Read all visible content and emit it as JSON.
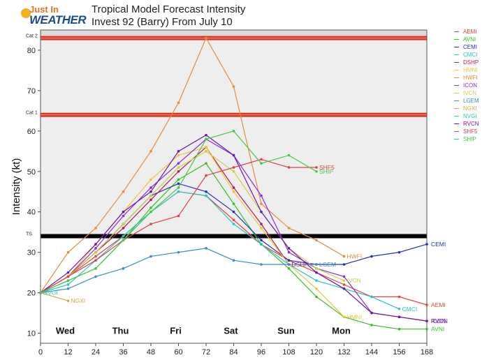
{
  "logo": {
    "line1": "Just In",
    "line2": "WEATHER"
  },
  "title": {
    "line1": "Tropical Model Forecast Intensity",
    "line2": "Invest 92 (Barry) From July 10"
  },
  "chart_data": {
    "type": "line",
    "title": "Tropical Model Forecast Intensity Invest 92 (Barry) From July 10",
    "ylabel": "Intensity (kt)",
    "xlabel": "",
    "xlim": [
      0,
      168
    ],
    "ylim": [
      7.5,
      85
    ],
    "x_ticks": [
      0,
      12,
      24,
      36,
      48,
      60,
      72,
      84,
      96,
      108,
      120,
      132,
      144,
      156,
      168
    ],
    "y_ticks": [
      10,
      20,
      30,
      40,
      50,
      60,
      70,
      80
    ],
    "day_labels": [
      {
        "label": "Wed",
        "x": 12
      },
      {
        "label": "Thu",
        "x": 36
      },
      {
        "label": "Fri",
        "x": 60
      },
      {
        "label": "Sat",
        "x": 84
      },
      {
        "label": "Sun",
        "x": 108
      },
      {
        "label": "Mon",
        "x": 132
      }
    ],
    "thresholds": [
      {
        "label": "Cat 2",
        "value": 83,
        "color": "#e0321e"
      },
      {
        "label": "Cat 1",
        "value": 64,
        "color": "#e0321e"
      },
      {
        "label": "TS",
        "value": 34,
        "color": "#000000"
      }
    ],
    "series": [
      {
        "name": "AEMI",
        "color": "#e8433a",
        "x": [
          0,
          12,
          24,
          36,
          48,
          60,
          72,
          84,
          96,
          108,
          120,
          132,
          144,
          156,
          168
        ],
        "y": [
          20,
          24,
          29,
          34,
          40,
          45,
          44,
          38,
          32,
          28,
          25,
          22,
          19,
          19,
          17
        ],
        "end_label": "AEMI"
      },
      {
        "name": "AVNI",
        "color": "#35c12b",
        "x": [
          0,
          12,
          24,
          36,
          48,
          60,
          72,
          84,
          96,
          108,
          120,
          132,
          144,
          156,
          168
        ],
        "y": [
          20,
          23,
          26,
          33,
          41,
          48,
          52,
          42,
          32,
          26,
          19,
          14,
          12,
          11,
          11
        ],
        "end_label": "AVNI"
      },
      {
        "name": "CEMI",
        "color": "#2433b5",
        "x": [
          0,
          12,
          24,
          36,
          48,
          60,
          72,
          84,
          96,
          108,
          120,
          132,
          144,
          156,
          168
        ],
        "y": [
          20,
          24,
          30,
          37,
          44,
          47,
          45,
          40,
          33,
          28,
          27,
          27,
          29,
          30,
          32
        ],
        "end_label": "CEMI"
      },
      {
        "name": "CMCI",
        "color": "#27c4c9",
        "x": [
          0,
          12,
          24,
          36,
          48,
          60,
          72,
          84,
          96,
          108,
          120,
          132,
          144,
          156
        ],
        "y": [
          20,
          22,
          28,
          34,
          40,
          45,
          44,
          37,
          32,
          27,
          23,
          21,
          19,
          16
        ],
        "end_label": "CMCI"
      },
      {
        "name": "DSHP",
        "color": "#b2185a",
        "x": [
          0,
          12,
          24,
          36,
          48,
          60,
          72,
          84,
          96,
          108
        ],
        "y": [
          20,
          24,
          30,
          36,
          43,
          50,
          56,
          46,
          37,
          27
        ],
        "end_label": "DSHP"
      },
      {
        "name": "HMNI",
        "color": "#f2c233",
        "x": [
          0,
          12,
          24,
          36,
          48,
          60,
          72,
          84,
          96,
          108,
          120,
          132
        ],
        "y": [
          20,
          24,
          32,
          40,
          48,
          54,
          56,
          45,
          36,
          27,
          21,
          14
        ],
        "end_label": "HMNI"
      },
      {
        "name": "HWFI",
        "color": "#e68a3c",
        "x": [
          0,
          12,
          24,
          36,
          48,
          60,
          72,
          84,
          96,
          108,
          120,
          132
        ],
        "y": [
          20,
          30,
          36,
          45,
          55,
          67,
          83,
          71,
          42,
          36,
          33,
          29
        ],
        "end_label": "HWFI"
      },
      {
        "name": "ICON",
        "color": "#8a2be2",
        "x": [
          0,
          12,
          24,
          36,
          48,
          60,
          72,
          84,
          96,
          108,
          120,
          132,
          144,
          156,
          168
        ],
        "y": [
          20,
          24,
          31,
          39,
          46,
          52,
          58,
          54,
          44,
          30,
          26,
          24,
          15,
          14,
          13
        ],
        "end_label": "ICON"
      },
      {
        "name": "IVCN",
        "color": "#cad23a",
        "x": [
          0,
          12,
          24,
          36,
          48,
          60,
          72,
          84,
          96,
          108,
          120,
          132
        ],
        "y": [
          20,
          24,
          30,
          37,
          44,
          51,
          55,
          50,
          40,
          31,
          26,
          23
        ],
        "end_label": "IVCN"
      },
      {
        "name": "LGEM",
        "color": "#3a8bd1",
        "x": [
          0,
          12,
          24,
          36,
          48,
          60,
          72,
          84,
          96,
          108,
          120
        ],
        "y": [
          20,
          21,
          24,
          26,
          29,
          30,
          31,
          28,
          27,
          27,
          27
        ],
        "end_label": "LGEM"
      },
      {
        "name": "NGXI",
        "color": "#d9a53c",
        "x": [
          0,
          12
        ],
        "y": [
          20,
          18
        ],
        "end_label": "NGXI"
      },
      {
        "name": "NVGI",
        "color": "#35c9b5",
        "x": [
          0
        ],
        "y": [
          20
        ],
        "end_label": "NVGI"
      },
      {
        "name": "RVCN",
        "color": "#6d17a8",
        "x": [
          0,
          12,
          24,
          36,
          48,
          60,
          72,
          84,
          96,
          108,
          120,
          132,
          144,
          156,
          168
        ],
        "y": [
          20,
          25,
          32,
          40,
          45,
          55,
          59,
          54,
          40,
          31,
          25,
          21,
          15,
          14,
          13
        ],
        "end_label": "RVCN"
      },
      {
        "name": "SHF5",
        "color": "#e0404a",
        "x": [
          0,
          12,
          24,
          36,
          48,
          60,
          72,
          84,
          96,
          108,
          120
        ],
        "y": [
          20,
          24,
          28,
          33,
          37,
          39,
          49,
          51,
          53,
          51,
          51
        ],
        "end_label": "SHF5"
      },
      {
        "name": "SHIP",
        "color": "#4cc64c",
        "x": [
          0,
          12,
          24,
          36,
          48,
          60,
          72,
          84,
          96,
          108,
          120
        ],
        "y": [
          20,
          23,
          26,
          33,
          40,
          46,
          58,
          60,
          52,
          54,
          50
        ],
        "end_label": "SHIP"
      }
    ]
  }
}
